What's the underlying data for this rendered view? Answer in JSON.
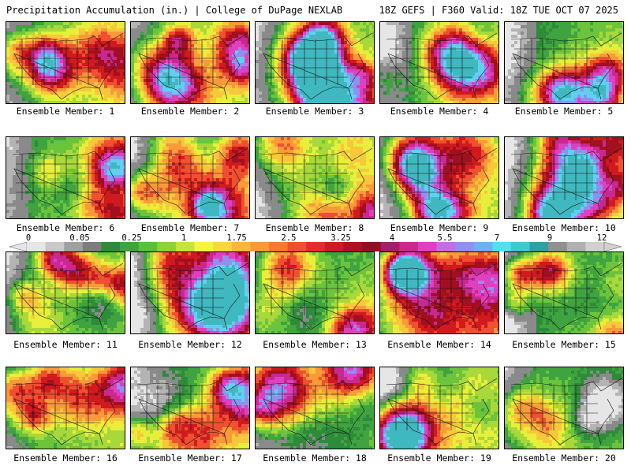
{
  "header": {
    "title_left": "Precipitation Accumulation (in.) | College of DuPage NEXLAB",
    "title_right": "18Z GEFS | F360 Valid: 18Z TUE OCT 07 2025"
  },
  "panels": [
    {
      "label": "Ensemble Member: 1"
    },
    {
      "label": "Ensemble Member: 2"
    },
    {
      "label": "Ensemble Member: 3"
    },
    {
      "label": "Ensemble Member: 4"
    },
    {
      "label": "Ensemble Member: 5"
    },
    {
      "label": "Ensemble Member: 6"
    },
    {
      "label": "Ensemble Member: 7"
    },
    {
      "label": "Ensemble Member: 8"
    },
    {
      "label": "Ensemble Member: 9"
    },
    {
      "label": "Ensemble Member: 10"
    },
    {
      "label": "Ensemble Member: 11"
    },
    {
      "label": "Ensemble Member: 12"
    },
    {
      "label": "Ensemble Member: 13"
    },
    {
      "label": "Ensemble Member: 14"
    },
    {
      "label": "Ensemble Member: 15"
    },
    {
      "label": "Ensemble Member: 16"
    },
    {
      "label": "Ensemble Member: 17"
    },
    {
      "label": "Ensemble Member: 18"
    },
    {
      "label": "Ensemble Member: 19"
    },
    {
      "label": "Ensemble Member: 20"
    }
  ],
  "colorbar": {
    "labels": [
      "0",
      "0.05",
      "0.25",
      "1",
      "1.75",
      "2.5",
      "3.25",
      "4",
      "5.5",
      "7",
      "9",
      "12"
    ],
    "colors": [
      "#e6e6e6",
      "#c8c8c8",
      "#a0a0a0",
      "#7d7d7d",
      "#2e8b3a",
      "#3fa33f",
      "#5cbf3c",
      "#8ed23a",
      "#c8e33a",
      "#f5f53a",
      "#f8d83a",
      "#f8b83a",
      "#f89a38",
      "#f47a34",
      "#ee5030",
      "#e82a2a",
      "#d01a1e",
      "#b01020",
      "#901020",
      "#a0206a",
      "#c82890",
      "#e040c0",
      "#c070e0",
      "#9090f0",
      "#70b0f0",
      "#50e0f0",
      "#40c8d0",
      "#30a0a0",
      "#909090",
      "#b0b0b0",
      "#d0d0d0"
    ]
  }
}
